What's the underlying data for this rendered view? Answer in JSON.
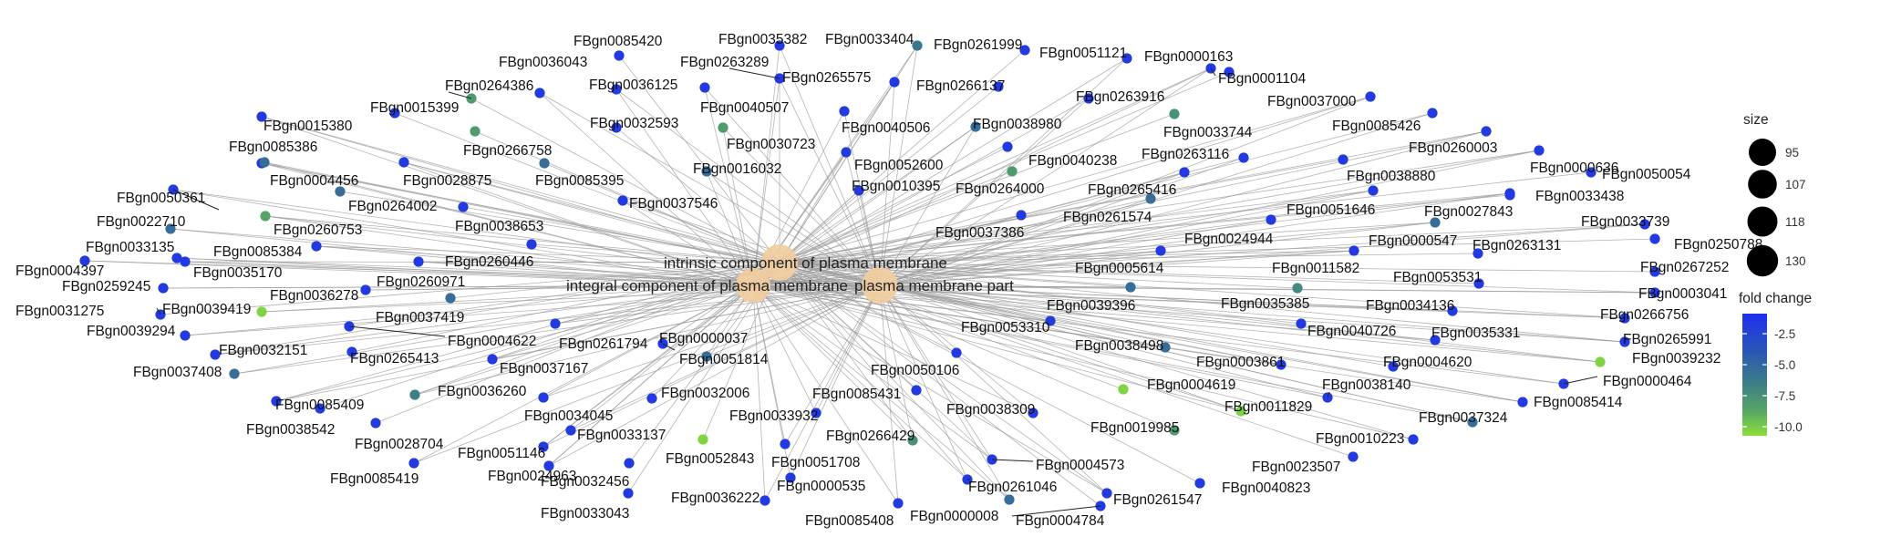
{
  "categories": [
    {
      "id": "c_intrinsic",
      "label": "intrinsic component of plasma membrane"
    },
    {
      "id": "c_integral",
      "label": "integral component of plasma membrane"
    },
    {
      "id": "c_part",
      "label": "plasma membrane part"
    }
  ],
  "genes": [
    {
      "id": "g01",
      "label": "FBgn0085420",
      "fc": -2.2
    },
    {
      "id": "g02",
      "label": "FBgn0035382",
      "fc": -2.2
    },
    {
      "id": "g03",
      "label": "FBgn0033404",
      "fc": -6.0
    },
    {
      "id": "g04",
      "label": "FBgn0261999",
      "fc": -2.2
    },
    {
      "id": "g05",
      "label": "FBgn0051121",
      "fc": -2.2
    },
    {
      "id": "g06",
      "label": "FBgn0000163",
      "fc": -2.2
    },
    {
      "id": "g07",
      "label": "FBgn0001104",
      "fc": -2.2
    },
    {
      "id": "g08",
      "label": "FBgn0036043",
      "fc": -2.2
    },
    {
      "id": "g09",
      "label": "FBgn0263289",
      "fc": -2.2
    },
    {
      "id": "g10",
      "label": "FBgn0264386",
      "fc": -8.0
    },
    {
      "id": "g11",
      "label": "FBgn0036125",
      "fc": -2.2
    },
    {
      "id": "g12",
      "label": "FBgn0265575",
      "fc": -2.2
    },
    {
      "id": "g13",
      "label": "FBgn0266137",
      "fc": -2.2
    },
    {
      "id": "g14",
      "label": "FBgn0263916",
      "fc": -2.2
    },
    {
      "id": "g15",
      "label": "FBgn0037000",
      "fc": -2.2
    },
    {
      "id": "g16",
      "label": "FBgn0015399",
      "fc": -2.2
    },
    {
      "id": "g17",
      "label": "FBgn0040507",
      "fc": -2.2
    },
    {
      "id": "g18",
      "label": "FBgn0015380",
      "fc": -2.2
    },
    {
      "id": "g19",
      "label": "FBgn0032593",
      "fc": -2.2
    },
    {
      "id": "g20",
      "label": "FBgn0040506",
      "fc": -2.2
    },
    {
      "id": "g21",
      "label": "FBgn0038980",
      "fc": -5.5
    },
    {
      "id": "g22",
      "label": "FBgn0033744",
      "fc": -7.5
    },
    {
      "id": "g23",
      "label": "FBgn0085426",
      "fc": -2.2
    },
    {
      "id": "g24",
      "label": "FBgn0085386",
      "fc": -2.2
    },
    {
      "id": "g25",
      "label": "FBgn0266758",
      "fc": -8.0
    },
    {
      "id": "g26",
      "label": "FBgn0030723",
      "fc": -8.0
    },
    {
      "id": "g27",
      "label": "FBgn0260003",
      "fc": -2.2
    },
    {
      "id": "g28",
      "label": "FBgn0040238",
      "fc": -2.2
    },
    {
      "id": "g29",
      "label": "FBgn0263116",
      "fc": -2.2
    },
    {
      "id": "g30",
      "label": "FBgn0000636",
      "fc": -2.2
    },
    {
      "id": "g31",
      "label": "FBgn0050054",
      "fc": -2.2
    },
    {
      "id": "g32",
      "label": "FBgn0004456",
      "fc": -5.5
    },
    {
      "id": "g33",
      "label": "FBgn0028875",
      "fc": -2.2
    },
    {
      "id": "g34",
      "label": "FBgn0085395",
      "fc": -5.5
    },
    {
      "id": "g35",
      "label": "FBgn0016032",
      "fc": -5.5
    },
    {
      "id": "g36",
      "label": "FBgn0052600",
      "fc": -2.2
    },
    {
      "id": "g37",
      "label": "FBgn0038880",
      "fc": -2.2
    },
    {
      "id": "g38",
      "label": "FBgn0050361",
      "fc": -2.2
    },
    {
      "id": "g39",
      "label": "FBgn0010395",
      "fc": -2.2
    },
    {
      "id": "g40",
      "label": "FBgn0264000",
      "fc": -8.0
    },
    {
      "id": "g41",
      "label": "FBgn0265416",
      "fc": -2.2
    },
    {
      "id": "g42",
      "label": "FBgn0033438",
      "fc": -2.2
    },
    {
      "id": "g43",
      "label": "FBgn0264002",
      "fc": -5.5
    },
    {
      "id": "g44",
      "label": "FBgn0037546",
      "fc": -2.2
    },
    {
      "id": "g45",
      "label": "FBgn0051646",
      "fc": -2.2
    },
    {
      "id": "g46",
      "label": "FBgn0027843",
      "fc": -2.2
    },
    {
      "id": "g47",
      "label": "FBgn0022710",
      "fc": -5.5
    },
    {
      "id": "g48",
      "label": "FBgn0260753",
      "fc": -8.5
    },
    {
      "id": "g49",
      "label": "FBgn0038653",
      "fc": -2.2
    },
    {
      "id": "g50",
      "label": "FBgn0261574",
      "fc": -5.5
    },
    {
      "id": "g51",
      "label": "FBgn0033739",
      "fc": -2.2
    },
    {
      "id": "g52",
      "label": "FBgn0037386",
      "fc": -2.2
    },
    {
      "id": "g53",
      "label": "FBgn0024944",
      "fc": -2.2
    },
    {
      "id": "g54",
      "label": "FBgn0000547",
      "fc": -5.5
    },
    {
      "id": "g55",
      "label": "FBgn0250788",
      "fc": -2.2
    },
    {
      "id": "g56",
      "label": "FBgn0033135",
      "fc": -2.2
    },
    {
      "id": "g57",
      "label": "FBgn0085384",
      "fc": -2.2
    },
    {
      "id": "g58",
      "label": "FBgn0263131",
      "fc": -2.2
    },
    {
      "id": "g59",
      "label": "FBgn0004397",
      "fc": -2.2
    },
    {
      "id": "g60",
      "label": "FBgn0035170",
      "fc": -2.2
    },
    {
      "id": "g61",
      "label": "FBgn0260446",
      "fc": -2.2
    },
    {
      "id": "g62",
      "label": "FBgn0005614",
      "fc": -2.2
    },
    {
      "id": "g63",
      "label": "FBgn0011582",
      "fc": -2.2
    },
    {
      "id": "g64",
      "label": "FBgn0267252",
      "fc": -2.2
    },
    {
      "id": "g65",
      "label": "FBgn0259245",
      "fc": -2.2
    },
    {
      "id": "g66",
      "label": "FBgn0260971",
      "fc": -2.2
    },
    {
      "id": "g67",
      "label": "FBgn0053531",
      "fc": -2.2
    },
    {
      "id": "g68",
      "label": "FBgn0036278",
      "fc": -2.2
    },
    {
      "id": "g69",
      "label": "FBgn0003041",
      "fc": -2.2
    },
    {
      "id": "g70",
      "label": "FBgn0031275",
      "fc": -2.2
    },
    {
      "id": "g71",
      "label": "FBgn0039419",
      "fc": -10.5
    },
    {
      "id": "g72",
      "label": "FBgn0039396",
      "fc": -5.5
    },
    {
      "id": "g73",
      "label": "FBgn0035385",
      "fc": -7.0
    },
    {
      "id": "g74",
      "label": "FBgn0034136",
      "fc": -2.2
    },
    {
      "id": "g75",
      "label": "FBgn0266756",
      "fc": -2.2
    },
    {
      "id": "g76",
      "label": "FBgn0037419",
      "fc": -5.5
    },
    {
      "id": "g77",
      "label": "FBgn0039294",
      "fc": -2.2
    },
    {
      "id": "g78",
      "label": "FBgn0053310",
      "fc": -2.2
    },
    {
      "id": "g79",
      "label": "FBgn0040726",
      "fc": -2.2
    },
    {
      "id": "g80",
      "label": "FBgn0035331",
      "fc": -2.2
    },
    {
      "id": "g81",
      "label": "FBgn0265991",
      "fc": -2.2
    },
    {
      "id": "g82",
      "label": "FBgn0004622",
      "fc": -2.2
    },
    {
      "id": "g83",
      "label": "FBgn0261794",
      "fc": -2.2
    },
    {
      "id": "g84",
      "label": "FBgn0032151",
      "fc": -2.2
    },
    {
      "id": "g85",
      "label": "FBgn0000037",
      "fc": -2.2
    },
    {
      "id": "g86",
      "label": "FBgn0038498",
      "fc": -5.5
    },
    {
      "id": "g87",
      "label": "FBgn0039232",
      "fc": -10.5
    },
    {
      "id": "g88",
      "label": "FBgn0265413",
      "fc": -2.2
    },
    {
      "id": "g89",
      "label": "FBgn0051814",
      "fc": -5.5
    },
    {
      "id": "g90",
      "label": "FBgn0003861",
      "fc": -2.2
    },
    {
      "id": "g91",
      "label": "FBgn0004620",
      "fc": -2.2
    },
    {
      "id": "g92",
      "label": "FBgn0037408",
      "fc": -5.5
    },
    {
      "id": "g93",
      "label": "FBgn0037167",
      "fc": -2.2
    },
    {
      "id": "g94",
      "label": "FBgn0050106",
      "fc": -2.2
    },
    {
      "id": "g95",
      "label": "FBgn0000464",
      "fc": -2.2
    },
    {
      "id": "g96",
      "label": "FBgn0036260",
      "fc": -6.5
    },
    {
      "id": "g97",
      "label": "FBgn0004619",
      "fc": -10.5
    },
    {
      "id": "g98",
      "label": "FBgn0038140",
      "fc": -2.2
    },
    {
      "id": "g99",
      "label": "FBgn0085409",
      "fc": -2.2
    },
    {
      "id": "g100",
      "label": "FBgn0032006",
      "fc": -2.2
    },
    {
      "id": "g101",
      "label": "FBgn0034045",
      "fc": -2.2
    },
    {
      "id": "g102",
      "label": "FBgn0011829",
      "fc": -10.5
    },
    {
      "id": "g103",
      "label": "FBgn0085431",
      "fc": -2.2
    },
    {
      "id": "g104",
      "label": "FBgn0038309",
      "fc": -2.2
    },
    {
      "id": "g105",
      "label": "FBgn0085414",
      "fc": -2.2
    },
    {
      "id": "g106",
      "label": "FBgn0038542",
      "fc": -2.2
    },
    {
      "id": "g107",
      "label": "FBgn0033932",
      "fc": -2.2
    },
    {
      "id": "g108",
      "label": "FBgn0037324",
      "fc": -5.5
    },
    {
      "id": "g109",
      "label": "FBgn0028704",
      "fc": -2.2
    },
    {
      "id": "g110",
      "label": "FBgn0033137",
      "fc": -2.2
    },
    {
      "id": "g111",
      "label": "FBgn0266429",
      "fc": -7.5
    },
    {
      "id": "g112",
      "label": "FBgn0019985",
      "fc": -8.0
    },
    {
      "id": "g113",
      "label": "FBgn0010223",
      "fc": -2.2
    },
    {
      "id": "g114",
      "label": "FBgn0051146",
      "fc": -2.2
    },
    {
      "id": "g115",
      "label": "FBgn0052843",
      "fc": -10.5
    },
    {
      "id": "g116",
      "label": "FBgn0051708",
      "fc": -2.2
    },
    {
      "id": "g117",
      "label": "FBgn0004573",
      "fc": -2.2
    },
    {
      "id": "g118",
      "label": "FBgn0023507",
      "fc": -2.2
    },
    {
      "id": "g119",
      "label": "FBgn0085419",
      "fc": -2.2
    },
    {
      "id": "g120",
      "label": "FBgn0024963",
      "fc": -2.2
    },
    {
      "id": "g121",
      "label": "FBgn0032456",
      "fc": -2.2
    },
    {
      "id": "g122",
      "label": "FBgn0000535",
      "fc": -2.2
    },
    {
      "id": "g123",
      "label": "FBgn0261046",
      "fc": -2.2
    },
    {
      "id": "g124",
      "label": "FBgn0040823",
      "fc": -2.2
    },
    {
      "id": "g125",
      "label": "FBgn0036222",
      "fc": -2.2
    },
    {
      "id": "g126",
      "label": "FBgn0261547",
      "fc": -2.2
    },
    {
      "id": "g127",
      "label": "FBgn0033043",
      "fc": -2.2
    },
    {
      "id": "g128",
      "label": "FBgn0085408",
      "fc": -2.2
    },
    {
      "id": "g129",
      "label": "FBgn0000008",
      "fc": -5.5
    },
    {
      "id": "g130",
      "label": "FBgn0004784",
      "fc": -2.2
    }
  ],
  "legend": {
    "size_title": "size",
    "size_values": [
      "95",
      "107",
      "118",
      "130"
    ],
    "color_title": "fold change",
    "color_ticks": [
      "-2.5",
      "-5.0",
      "-7.5",
      "-10.0"
    ],
    "color_range": [
      -11,
      -1.5
    ],
    "color_stops": [
      "#1e2ff0",
      "#2a55b8",
      "#3b7a8a",
      "#57a764",
      "#8ae03c"
    ],
    "hub_color": "#f2cda0"
  }
}
